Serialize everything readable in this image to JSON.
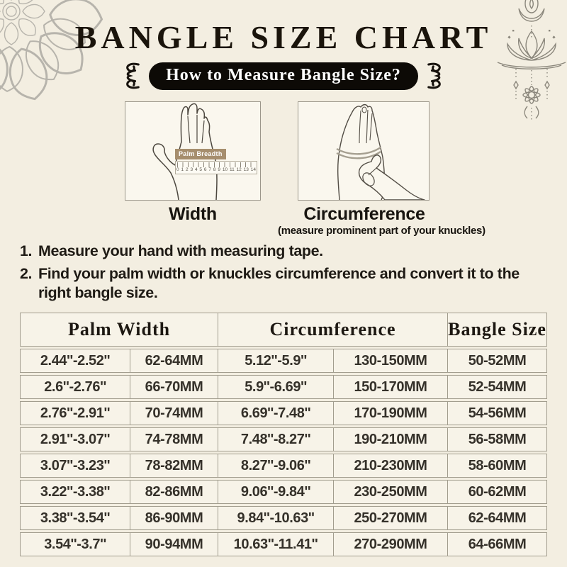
{
  "header": {
    "title": "BANGLE SIZE CHART",
    "pill_label": "How to Measure Bangle Size?"
  },
  "diagrams": {
    "width": {
      "caption": "Width",
      "ruler_label": "Palm Breadth",
      "ruler_numbers": [
        "0",
        "1",
        "2",
        "3",
        "4",
        "5",
        "6",
        "7",
        "8",
        "9",
        "10",
        "11",
        "12",
        "13",
        "14"
      ]
    },
    "circumference": {
      "caption": "Circumference",
      "note": "(measure prominent part of your knuckles)"
    }
  },
  "instructions": {
    "item1": {
      "num": "1.",
      "text": "Measure your hand with measuring tape."
    },
    "item2": {
      "num": "2.",
      "line1": "Find your palm width or knuckles circumference and convert it to the",
      "line2": "right bangle size."
    }
  },
  "table": {
    "headers": [
      {
        "label": "Palm Width",
        "colspan": 2
      },
      {
        "label": "Circumference",
        "colspan": 2
      },
      {
        "label": "Bangle Size",
        "colspan": 1
      }
    ],
    "rows": [
      [
        "2.44''-2.52''",
        "62-64MM",
        "5.12''-5.9''",
        "130-150MM",
        "50-52MM"
      ],
      [
        "2.6''-2.76''",
        "66-70MM",
        "5.9''-6.69''",
        "150-170MM",
        "52-54MM"
      ],
      [
        "2.76''-2.91''",
        "70-74MM",
        "6.69''-7.48''",
        "170-190MM",
        "54-56MM"
      ],
      [
        "2.91''-3.07''",
        "74-78MM",
        "7.48''-8.27''",
        "190-210MM",
        "56-58MM"
      ],
      [
        "3.07''-3.23''",
        "78-82MM",
        "8.27''-9.06''",
        "210-230MM",
        "58-60MM"
      ],
      [
        "3.22''-3.38''",
        "82-86MM",
        "9.06''-9.84''",
        "230-250MM",
        "60-62MM"
      ],
      [
        "3.38''-3.54''",
        "86-90MM",
        "9.84''-10.63''",
        "250-270MM",
        "62-64MM"
      ],
      [
        "3.54''-3.7''",
        "90-94MM",
        "10.63''-11.41''",
        "270-290MM",
        "64-66MM"
      ]
    ]
  },
  "colors": {
    "page_bg": "#f3eee1",
    "panel_bg": "#faf7ee",
    "pill_bg": "#0d0a06",
    "pill_text": "#ffffff",
    "title_text": "#1a140b",
    "table_border": "#a29d8e",
    "table_cell_bg": "#f7f3e8",
    "ruler_label_bg": "#a68e6e",
    "mandala_gray": "#b7b4ac",
    "lotus_gray": "#8b877c"
  }
}
